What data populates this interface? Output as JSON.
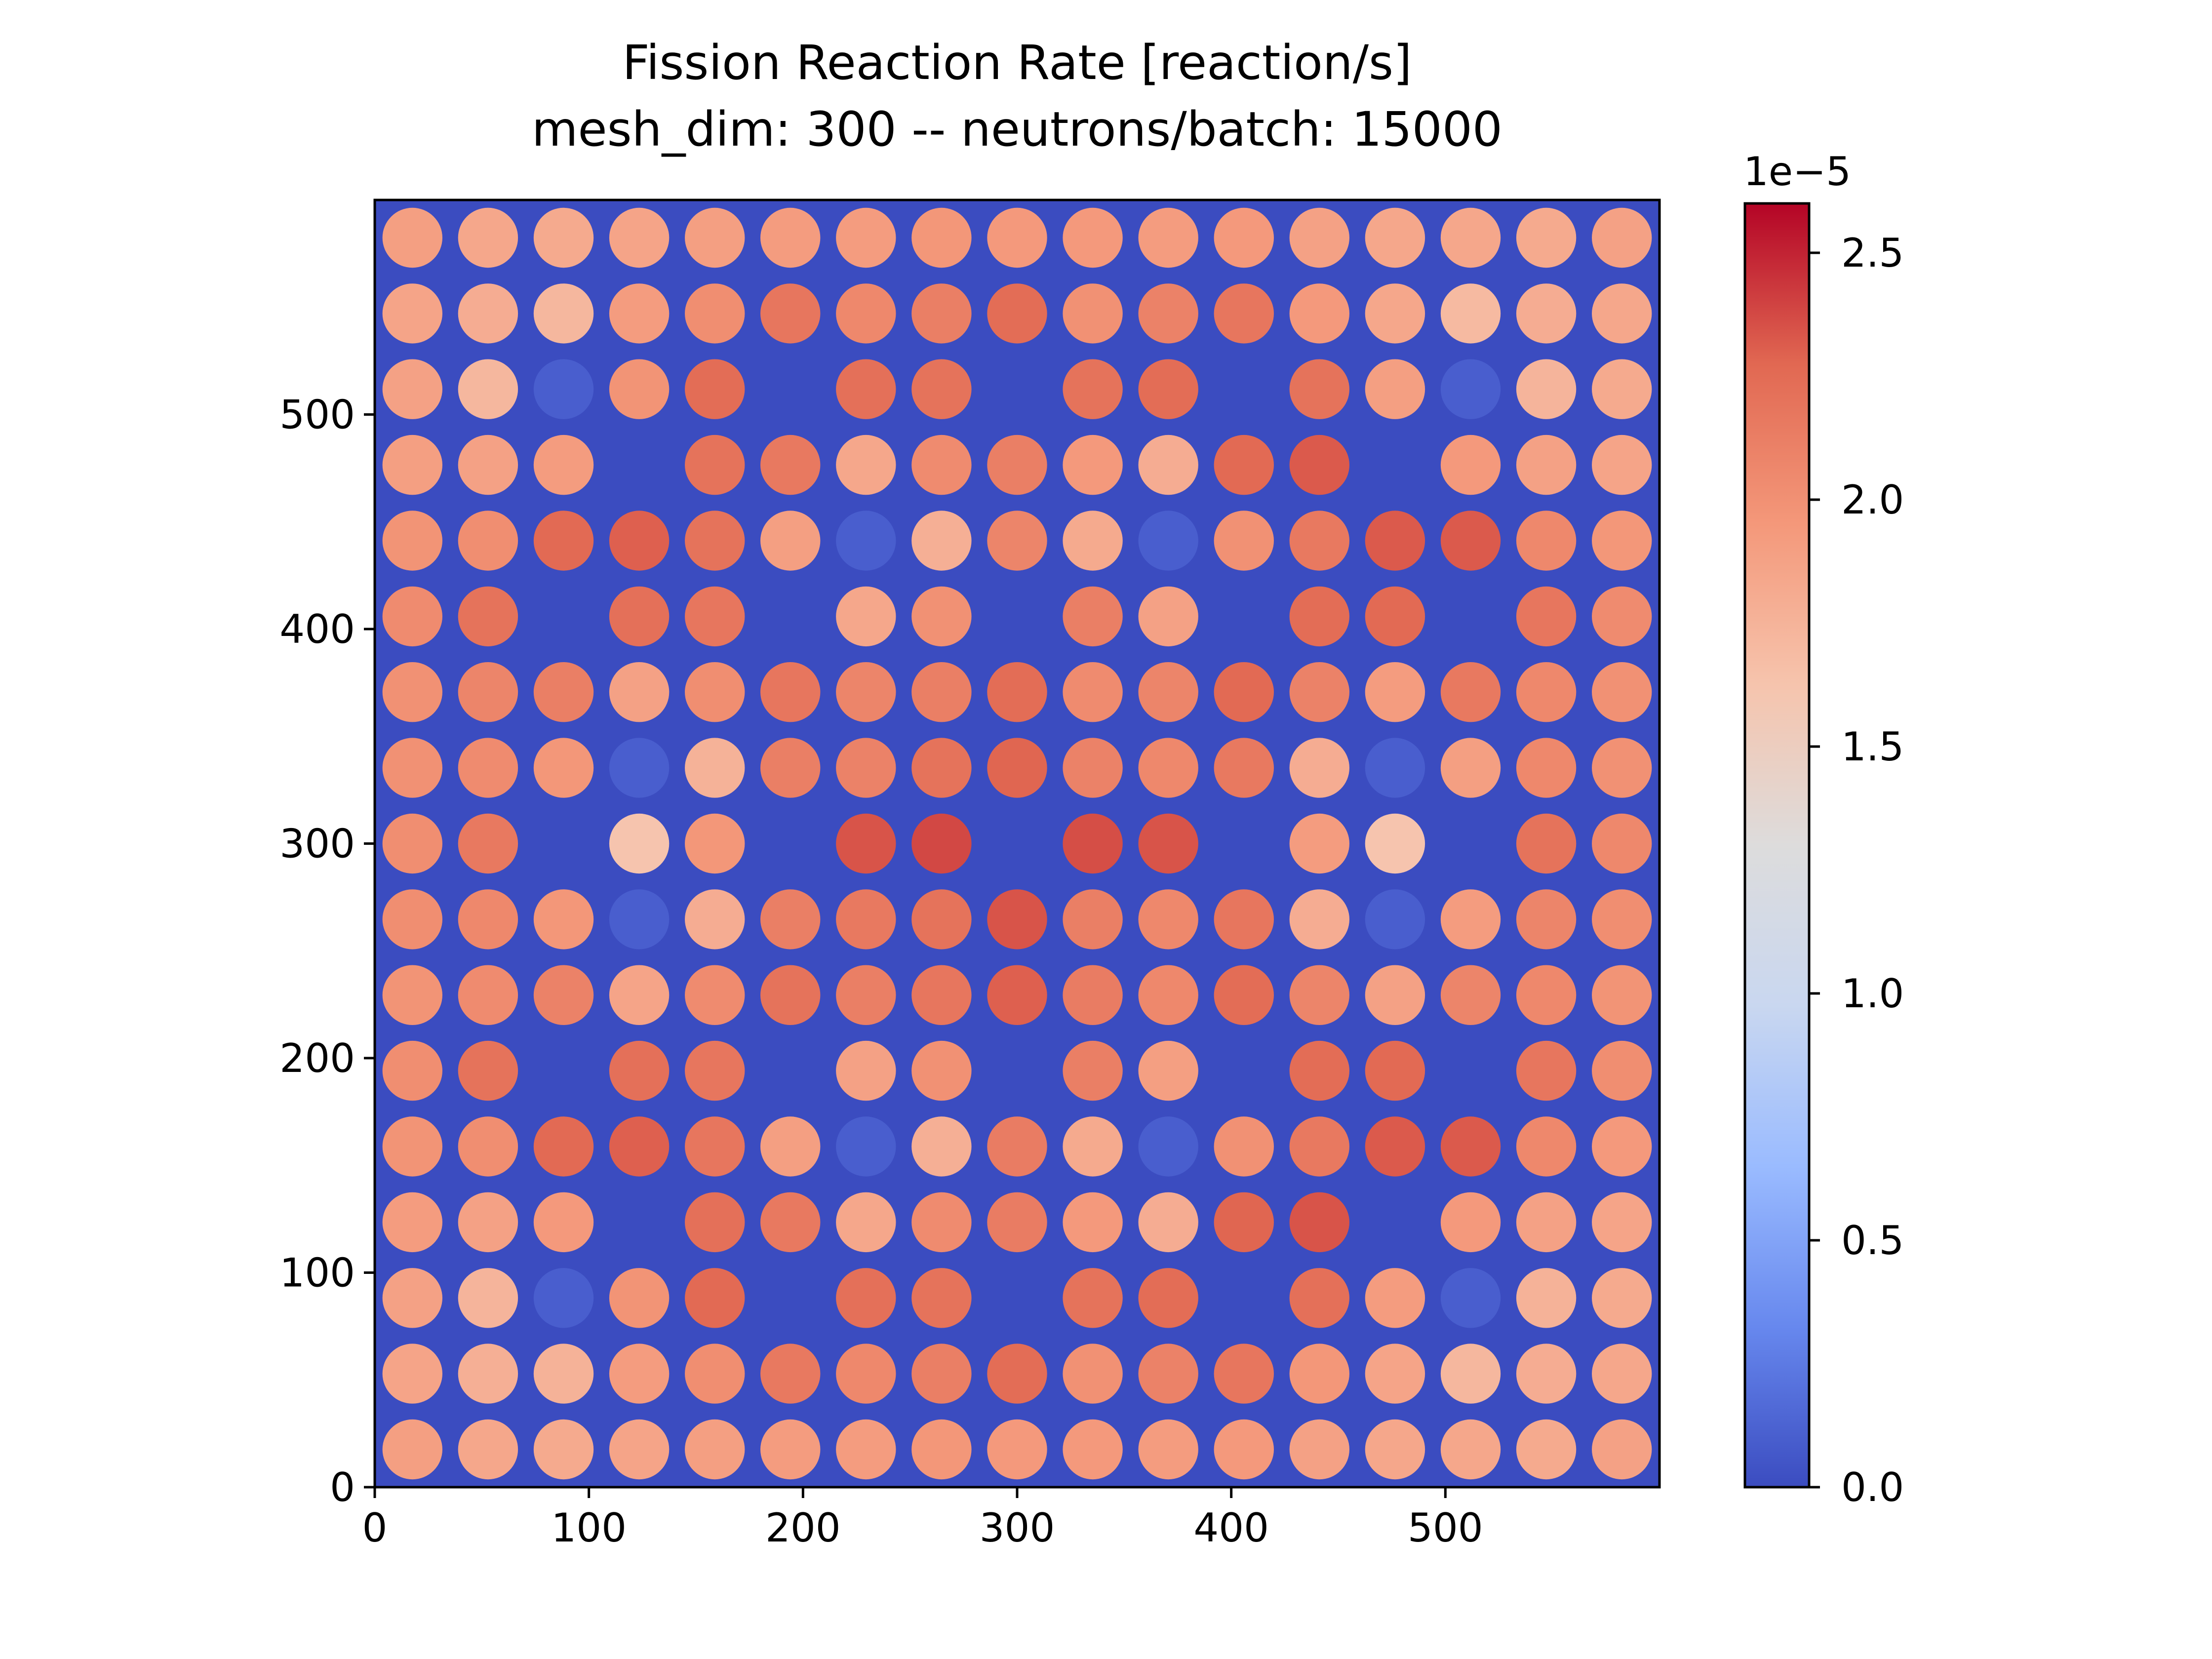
{
  "chart_data": {
    "type": "heatmap",
    "title": "Fission Reaction Rate [reaction/s]",
    "subtitle": "mesh_dim: 300 -- neutrons/batch: 15000",
    "xlabel": "",
    "ylabel": "",
    "xlim": [
      0,
      600
    ],
    "ylim": [
      0,
      600
    ],
    "x_ticks": [
      0,
      100,
      200,
      300,
      400,
      500
    ],
    "y_ticks": [
      0,
      100,
      200,
      300,
      400,
      500
    ],
    "colormap": "coolwarm",
    "colormap_stops": [
      "#3b4cc0",
      "#6788ee",
      "#9abbff",
      "#c9d7f0",
      "#dddcdc",
      "#f6c4ad",
      "#f4987a",
      "#e16852",
      "#b40426"
    ],
    "background_color": "#3b4cc0",
    "colorbar": {
      "min": 0.0,
      "max": 2.6e-05,
      "offset_label": "1e−5",
      "ticks": [
        0.0,
        0.5,
        1.0,
        1.5,
        2.0,
        2.5
      ],
      "tick_labels": [
        "0.0",
        "0.5",
        "1.0",
        "1.5",
        "2.0",
        "2.5"
      ]
    },
    "grid_size": 17,
    "pin_pitch": 35.3,
    "pin_centers": [
      17.6,
      52.9,
      88.2,
      123.5,
      158.8,
      194.1,
      229.4,
      264.7,
      300.0,
      335.3,
      370.6,
      405.9,
      441.2,
      476.5,
      511.8,
      547.1,
      582.4
    ],
    "pin_rate_units": "1e-5 reaction/s",
    "pin_rates_rows_top_to_bottom": [
      [
        1.9,
        1.84,
        1.82,
        1.86,
        1.9,
        1.92,
        1.92,
        1.96,
        1.94,
        1.94,
        1.92,
        1.94,
        1.88,
        1.84,
        1.84,
        1.82,
        1.88
      ],
      [
        1.86,
        1.8,
        1.72,
        1.92,
        2.02,
        2.18,
        2.06,
        2.12,
        2.24,
        2.0,
        2.1,
        2.18,
        1.94,
        1.84,
        1.7,
        1.8,
        1.84
      ],
      [
        1.88,
        1.72,
        0.1,
        1.98,
        2.24,
        null,
        2.22,
        2.2,
        null,
        2.2,
        2.24,
        null,
        2.2,
        1.9,
        0.1,
        1.74,
        1.82
      ],
      [
        1.9,
        1.88,
        1.92,
        null,
        2.2,
        2.16,
        1.84,
        2.04,
        2.12,
        1.94,
        1.8,
        2.26,
        2.32,
        null,
        1.94,
        1.88,
        1.86
      ],
      [
        1.98,
        2.02,
        2.26,
        2.3,
        2.2,
        1.9,
        0.1,
        1.78,
        2.08,
        1.82,
        0.1,
        2.0,
        2.16,
        2.32,
        2.32,
        2.06,
        1.96
      ],
      [
        2.04,
        2.2,
        null,
        2.22,
        2.18,
        null,
        1.84,
        2.0,
        null,
        2.12,
        1.88,
        null,
        2.24,
        2.26,
        null,
        2.18,
        2.04
      ],
      [
        2.0,
        2.08,
        2.12,
        1.88,
        2.02,
        2.18,
        2.08,
        2.12,
        2.24,
        2.04,
        2.08,
        2.26,
        2.1,
        1.92,
        2.16,
        2.06,
        2.0
      ],
      [
        2.0,
        2.04,
        1.96,
        0.1,
        1.76,
        2.12,
        2.1,
        2.2,
        2.28,
        2.1,
        2.06,
        2.16,
        1.8,
        0.1,
        1.9,
        2.06,
        2.0
      ],
      [
        2.02,
        2.16,
        null,
        1.62,
        1.96,
        null,
        2.34,
        2.38,
        null,
        2.36,
        2.34,
        null,
        1.92,
        1.62,
        null,
        2.2,
        2.06
      ],
      [
        2.02,
        2.06,
        1.96,
        0.1,
        1.8,
        2.12,
        2.16,
        2.2,
        2.34,
        2.12,
        2.06,
        2.18,
        1.8,
        0.1,
        1.92,
        2.08,
        2.02
      ],
      [
        1.98,
        2.04,
        2.1,
        1.86,
        2.04,
        2.2,
        2.12,
        2.18,
        2.3,
        2.14,
        2.06,
        2.24,
        2.08,
        1.88,
        2.08,
        2.06,
        1.98
      ],
      [
        2.02,
        2.2,
        null,
        2.22,
        2.18,
        null,
        1.88,
        2.0,
        null,
        2.12,
        1.9,
        null,
        2.24,
        2.26,
        null,
        2.18,
        2.02
      ],
      [
        1.98,
        2.02,
        2.26,
        2.3,
        2.18,
        1.9,
        0.1,
        1.78,
        2.14,
        1.82,
        0.1,
        2.0,
        2.16,
        2.32,
        2.32,
        2.06,
        1.94
      ],
      [
        1.92,
        1.88,
        1.94,
        null,
        2.22,
        2.16,
        1.84,
        2.04,
        2.14,
        1.94,
        1.8,
        2.28,
        2.34,
        null,
        1.94,
        1.88,
        1.86
      ],
      [
        1.88,
        1.74,
        0.1,
        1.98,
        2.26,
        null,
        2.22,
        2.2,
        null,
        2.2,
        2.24,
        null,
        2.22,
        1.92,
        0.1,
        1.76,
        1.82
      ],
      [
        1.86,
        1.78,
        1.76,
        1.92,
        2.02,
        2.16,
        2.06,
        2.12,
        2.24,
        2.0,
        2.1,
        2.18,
        1.96,
        1.86,
        1.72,
        1.8,
        1.84
      ],
      [
        1.9,
        1.84,
        1.82,
        1.86,
        1.9,
        1.92,
        1.92,
        1.96,
        1.94,
        1.94,
        1.92,
        1.94,
        1.88,
        1.84,
        1.84,
        1.82,
        1.88
      ]
    ]
  }
}
